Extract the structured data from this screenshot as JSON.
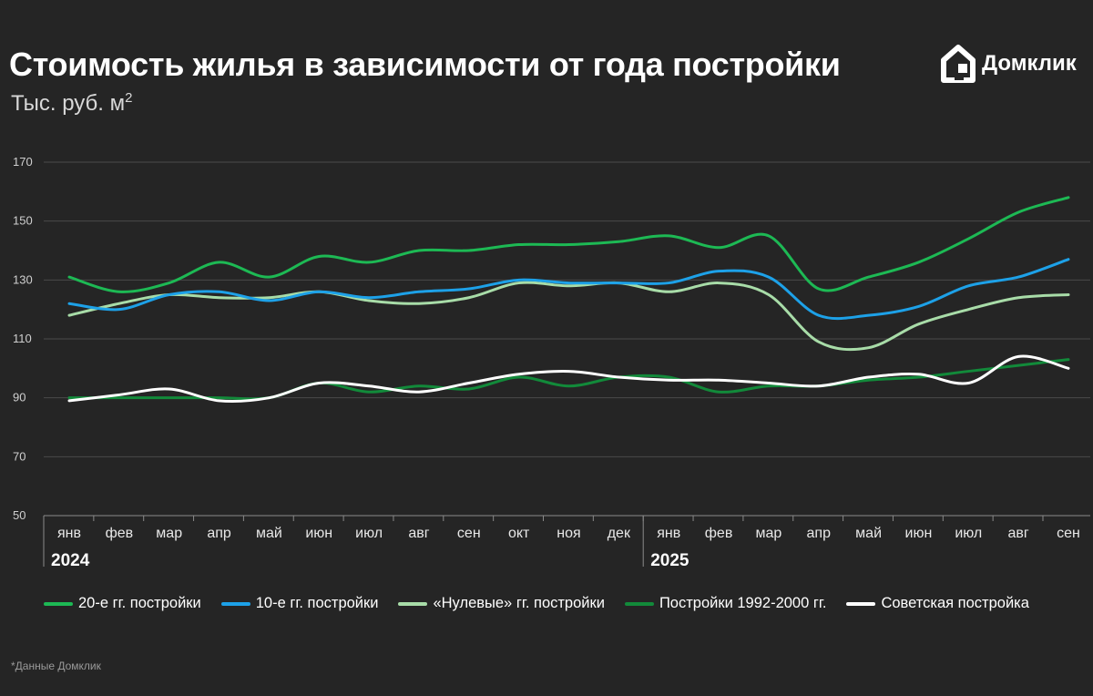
{
  "header": {
    "title": "Стоимость жилья в зависимости от года постройки",
    "unit": "Тыс. руб. м",
    "unit_sup": "2"
  },
  "brand": {
    "name": "Домклик",
    "icon": "domclick-house-icon"
  },
  "footnote": "*Данные Домклик",
  "chart_data": {
    "type": "line",
    "ylim": [
      50,
      170
    ],
    "yticks": [
      50,
      70,
      90,
      110,
      130,
      150,
      170
    ],
    "grid": true,
    "legend_position": "bottom",
    "categories": [
      "янв",
      "фев",
      "мар",
      "апр",
      "май",
      "июн",
      "июл",
      "авг",
      "сен",
      "окт",
      "ноя",
      "дек",
      "янв",
      "фев",
      "мар",
      "апр",
      "май",
      "июн",
      "июл",
      "авг",
      "сен"
    ],
    "year_labels": [
      {
        "label": "2024",
        "index": 0
      },
      {
        "label": "2025",
        "index": 12
      }
    ],
    "series": [
      {
        "name": "20-е гг. постройки",
        "color": "#1db954",
        "values": [
          131,
          126,
          129,
          136,
          131,
          138,
          136,
          140,
          140,
          142,
          142,
          143,
          145,
          141,
          145,
          127,
          131,
          136,
          144,
          153,
          158
        ]
      },
      {
        "name": "10-е гг. постройки",
        "color": "#1da1e8",
        "values": [
          122,
          120,
          125,
          126,
          123,
          126,
          124,
          126,
          127,
          130,
          129,
          129,
          129,
          133,
          131,
          118,
          118,
          121,
          128,
          131,
          137
        ]
      },
      {
        "name": "«Нулевые» гг. постройки",
        "color": "#a8dca8",
        "values": [
          118,
          122,
          125,
          124,
          124,
          126,
          123,
          122,
          124,
          129,
          128,
          129,
          126,
          129,
          125,
          109,
          107,
          115,
          120,
          124,
          125
        ]
      },
      {
        "name": "Постройки 1992-2000 гг.",
        "color": "#128a3a",
        "values": [
          90,
          90,
          90,
          90,
          90,
          95,
          92,
          94,
          93,
          97,
          94,
          97,
          97,
          92,
          94,
          94,
          96,
          97,
          99,
          101,
          103
        ]
      },
      {
        "name": "Советская постройка",
        "color": "#ffffff",
        "values": [
          89,
          91,
          93,
          89,
          90,
          95,
          94,
          92,
          95,
          98,
          99,
          97,
          96,
          96,
          95,
          94,
          97,
          98,
          95,
          104,
          100
        ]
      }
    ]
  }
}
